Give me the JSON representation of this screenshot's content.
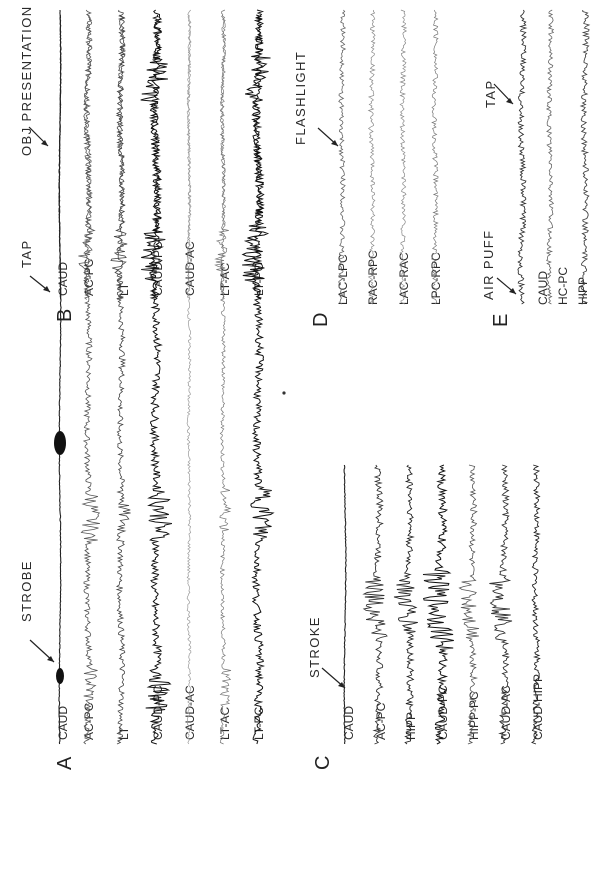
{
  "panels": {
    "A": {
      "letter": "A",
      "channels": [
        "CAUD",
        "AC-PC",
        "LT",
        "CAUD-PC",
        "CAUD-AC",
        "LT-AC",
        "LT-PC"
      ],
      "events": [
        {
          "label": "STROBE"
        }
      ]
    },
    "B": {
      "letter": "B",
      "channels": [
        "CAUD",
        "AC-PC",
        "LT",
        "CAUD-PC",
        "CAUD-AC",
        "LT-AC",
        "LT-PC"
      ],
      "events": [
        {
          "label": "TAP"
        },
        {
          "label": "OBJ PRESENTATION"
        }
      ]
    },
    "C": {
      "letter": "C",
      "channels": [
        "CAUD",
        "AC-PC",
        "HIPP",
        "CAUD-PC",
        "HIPP-PC",
        "CAUD-AC",
        "CAUD-HIPP"
      ],
      "events": [
        {
          "label": "STROKE"
        }
      ]
    },
    "D": {
      "letter": "D",
      "channels": [
        "LAC-LPC",
        "RAC-RPC",
        "LAC-RAC",
        "LPC-RPC"
      ],
      "events": [
        {
          "label": "FLASHLIGHT"
        }
      ]
    },
    "E": {
      "letter": "E",
      "channels": [
        "CAUD",
        "HC-PC",
        "HIPP"
      ],
      "events": [
        {
          "label": "AIR PUFF"
        },
        {
          "label": "TAP"
        }
      ]
    }
  }
}
